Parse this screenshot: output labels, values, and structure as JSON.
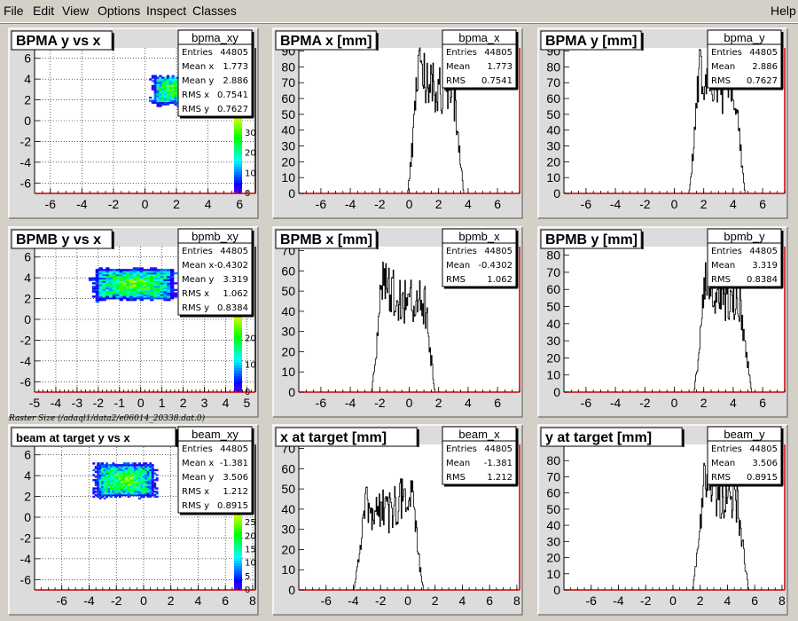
{
  "menubar": {
    "items": [
      "File",
      "Edit",
      "View",
      "Options",
      "Inspect",
      "Classes"
    ],
    "help": "Help"
  },
  "caption": "Raster Size (/adaql1/data2/e06014_20338.dat.0)",
  "colors": {
    "frame": "#d4d0c8",
    "frame_fill": "#dcdcdc",
    "axis": "#cc0000",
    "hist": "#000000"
  },
  "chart_data": [
    {
      "type": "heatmap",
      "id": "pad-0-0",
      "title": "BPMA y vs x",
      "stats_name": "bpma_xy",
      "stats": [
        [
          "Entries",
          "44805"
        ],
        [
          "Mean x",
          "1.773"
        ],
        [
          "Mean y",
          "2.886"
        ],
        [
          "RMS x",
          "0.7541"
        ],
        [
          "RMS y",
          "0.7627"
        ]
      ],
      "xlim": [
        -7,
        7
      ],
      "ylim": [
        -7,
        7
      ],
      "xticks": [
        -6,
        -4,
        -2,
        0,
        2,
        4,
        6
      ],
      "yticks": [
        -6,
        -4,
        -2,
        0,
        2,
        4,
        6
      ],
      "grid": true,
      "blob": {
        "x_center": 1.8,
        "y_center": 2.9,
        "x_half": 1.3,
        "y_half": 1.3
      },
      "palette_labels": [
        "0",
        "10",
        "20",
        "30"
      ]
    },
    {
      "type": "bar",
      "id": "pad-0-1",
      "title": "BPMA x [mm]",
      "stats_name": "bpma_x",
      "stats": [
        [
          "Entries",
          "44805"
        ],
        [
          "Mean",
          "1.773"
        ],
        [
          "RMS",
          "0.7541"
        ]
      ],
      "xlim": [
        -7.5,
        7.5
      ],
      "ylim": [
        0,
        92
      ],
      "xticks": [
        -6,
        -4,
        -2,
        0,
        2,
        4,
        6
      ],
      "yticks": [
        0,
        10,
        20,
        30,
        40,
        50,
        60,
        70,
        80,
        90
      ],
      "grid": false,
      "dist": {
        "center": 1.8,
        "half": 1.55,
        "edge": 0.35,
        "level": 65,
        "noise": 16,
        "peak_side": "left"
      }
    },
    {
      "type": "bar",
      "id": "pad-0-2",
      "title": "BPMA y [mm]",
      "stats_name": "bpma_y",
      "stats": [
        [
          "Entries",
          "44805"
        ],
        [
          "Mean",
          "2.886"
        ],
        [
          "RMS",
          "0.7627"
        ]
      ],
      "xlim": [
        -7.5,
        7.5
      ],
      "ylim": [
        0,
        92
      ],
      "xticks": [
        -6,
        -4,
        -2,
        0,
        2,
        4,
        6
      ],
      "yticks": [
        0,
        10,
        20,
        30,
        40,
        50,
        60,
        70,
        80,
        90
      ],
      "grid": false,
      "dist": {
        "center": 2.9,
        "half": 1.55,
        "edge": 0.35,
        "level": 65,
        "noise": 16,
        "peak_side": "left"
      }
    },
    {
      "type": "heatmap",
      "id": "pad-1-0",
      "title": "BPMB y vs x",
      "stats_name": "bpmb_xy",
      "stats": [
        [
          "Entries",
          "44805"
        ],
        [
          "Mean x",
          "-0.4302"
        ],
        [
          "Mean y",
          "3.319"
        ],
        [
          "RMS x",
          "1.062"
        ],
        [
          "RMS y",
          "0.8384"
        ]
      ],
      "xlim": [
        -5,
        5.4
      ],
      "ylim": [
        -7,
        7
      ],
      "xticks": [
        -5,
        -4,
        -3,
        -2,
        -1,
        0,
        1,
        2,
        3,
        4,
        5
      ],
      "yticks": [
        -6,
        -4,
        -2,
        0,
        2,
        4,
        6
      ],
      "grid": true,
      "blob": {
        "x_center": -0.4,
        "y_center": 3.3,
        "x_half": 1.8,
        "y_half": 1.4
      },
      "palette_labels": [
        "0",
        "10",
        "20"
      ]
    },
    {
      "type": "bar",
      "id": "pad-1-1",
      "title": "BPMB x [mm]",
      "stats_name": "bpmb_x",
      "stats": [
        [
          "Entries",
          "44805"
        ],
        [
          "Mean",
          "-0.4302"
        ],
        [
          "RMS",
          "1.062"
        ]
      ],
      "xlim": [
        -7.5,
        7.5
      ],
      "ylim": [
        0,
        72
      ],
      "xticks": [
        -6,
        -4,
        -2,
        0,
        2,
        4,
        6
      ],
      "yticks": [
        0,
        10,
        20,
        30,
        40,
        50,
        60,
        70
      ],
      "grid": false,
      "dist": {
        "center": -0.4,
        "half": 1.8,
        "edge": 0.35,
        "level": 45,
        "noise": 12,
        "peak_side": "left"
      }
    },
    {
      "type": "bar",
      "id": "pad-1-2",
      "title": "BPMB y [mm]",
      "stats_name": "bpmb_y",
      "stats": [
        [
          "Entries",
          "44805"
        ],
        [
          "Mean",
          "3.319"
        ],
        [
          "RMS",
          "0.8384"
        ]
      ],
      "xlim": [
        -7.5,
        7.5
      ],
      "ylim": [
        0,
        85
      ],
      "xticks": [
        -6,
        -4,
        -2,
        0,
        2,
        4,
        6
      ],
      "yticks": [
        0,
        10,
        20,
        30,
        40,
        50,
        60,
        70,
        80
      ],
      "grid": false,
      "dist": {
        "center": 3.3,
        "half": 1.55,
        "edge": 0.4,
        "level": 55,
        "noise": 14,
        "peak_side": "left"
      }
    },
    {
      "type": "heatmap",
      "id": "pad-2-0",
      "title": "beam at target y vs x",
      "stats_name": "beam_xy",
      "stats": [
        [
          "Entries",
          "44805"
        ],
        [
          "Mean x",
          "-1.381"
        ],
        [
          "Mean y",
          "3.506"
        ],
        [
          "RMS x",
          "1.212"
        ],
        [
          "RMS y",
          "0.8915"
        ]
      ],
      "xlim": [
        -8,
        8.2
      ],
      "ylim": [
        -7,
        7
      ],
      "xticks": [
        -6,
        -4,
        -2,
        0,
        2,
        4,
        6,
        8
      ],
      "yticks": [
        -6,
        -4,
        -2,
        0,
        2,
        4,
        6
      ],
      "grid": true,
      "blob": {
        "x_center": -1.4,
        "y_center": 3.5,
        "x_half": 2.1,
        "y_half": 1.5
      },
      "palette_labels": [
        "0",
        "5",
        "10",
        "15",
        "20",
        "25"
      ]
    },
    {
      "type": "bar",
      "id": "pad-2-1",
      "title": "x at target [mm]",
      "stats_name": "beam_x",
      "stats": [
        [
          "Entries",
          "44805"
        ],
        [
          "Mean",
          "-1.381"
        ],
        [
          "RMS",
          "1.212"
        ]
      ],
      "xlim": [
        -8,
        8.2
      ],
      "ylim": [
        0,
        72
      ],
      "xticks": [
        -6,
        -4,
        -2,
        0,
        2,
        4,
        6,
        8
      ],
      "yticks": [
        0,
        10,
        20,
        30,
        40,
        50,
        60,
        70
      ],
      "grid": false,
      "dist": {
        "center": -1.4,
        "half": 2.1,
        "edge": 0.45,
        "level": 40,
        "noise": 12,
        "peak_side": "right"
      }
    },
    {
      "type": "bar",
      "id": "pad-2-2",
      "title": "y at target [mm]",
      "stats_name": "beam_y",
      "stats": [
        [
          "Entries",
          "44805"
        ],
        [
          "Mean",
          "3.506"
        ],
        [
          "RMS",
          "0.8915"
        ]
      ],
      "xlim": [
        -8,
        8.2
      ],
      "ylim": [
        0,
        90
      ],
      "xticks": [
        -6,
        -4,
        -2,
        0,
        2,
        4,
        6,
        8
      ],
      "yticks": [
        0,
        10,
        20,
        30,
        40,
        50,
        60,
        70,
        80
      ],
      "grid": false,
      "dist": {
        "center": 3.5,
        "half": 1.6,
        "edge": 0.45,
        "level": 58,
        "noise": 16,
        "peak_side": "left"
      }
    }
  ]
}
